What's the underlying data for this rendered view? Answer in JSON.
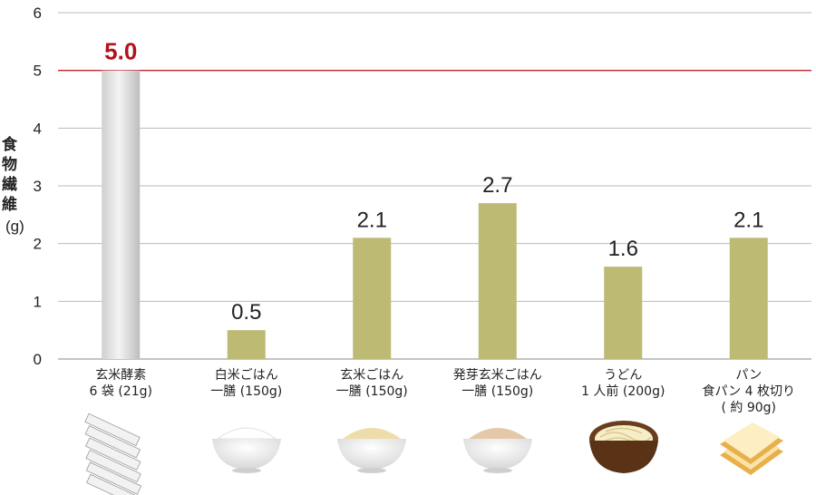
{
  "chart_data": {
    "type": "bar",
    "ylabel": "食物繊維",
    "yunit": "(g)",
    "ylim": [
      0,
      6
    ],
    "yticks": [
      0,
      1,
      2,
      3,
      4,
      5,
      6
    ],
    "grid": true,
    "reference_line": 5,
    "categories": [
      [
        "玄米酵素",
        "6 袋 (21g)"
      ],
      [
        "白米ごはん",
        "一膳 (150g)"
      ],
      [
        "玄米ごはん",
        "一膳 (150g)"
      ],
      [
        "発芽玄米ごはん",
        "一膳 (150g)"
      ],
      [
        "うどん",
        "1 人前 (200g)"
      ],
      [
        "パン",
        "食パン 4 枚切り",
        "( 約 90g)"
      ]
    ],
    "values": [
      5.0,
      0.5,
      2.1,
      2.7,
      1.6,
      2.1
    ],
    "value_labels": [
      "5.0",
      "0.5",
      "2.1",
      "2.7",
      "1.6",
      "2.1"
    ],
    "colors": {
      "highlight_bar": "#d9d9d9",
      "bar": "#bdba74",
      "highlight_text": "#b3121d",
      "reference_line": "#c0262c",
      "grid": "#bbbbbb"
    },
    "icons": [
      "stick-packets-icon",
      "white-rice-bowl-icon",
      "brown-rice-bowl-icon",
      "germinated-rice-bowl-icon",
      "udon-bowl-icon",
      "bread-slices-icon"
    ]
  }
}
